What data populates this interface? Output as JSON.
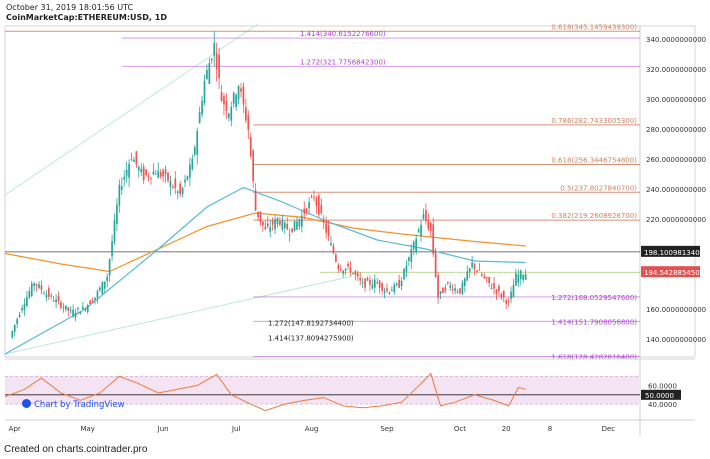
{
  "header": {
    "date": "October 31, 2019 18:01:56 UTC",
    "symbol": "CoinMarketCap:ETHEREUM:USD, 1D"
  },
  "branding": {
    "chart_by": "Chart by TradingView"
  },
  "footer": {
    "credit": "Created on charts.cointrader.pro"
  },
  "colors": {
    "up": "#26a69a",
    "down": "#ef5350",
    "ema_fast": "#56b9d6",
    "ema_slow": "#f0922a",
    "fib_ext": "#b040d8",
    "fib_ret": "#d08060",
    "rsi": "#f07a3a",
    "rsi_band": "#f3e3f3",
    "price_tag": "#e45050",
    "level_tag": "#222222"
  },
  "chart_data": {
    "type": "candlestick",
    "title": "CoinMarketCap:ETHEREUM:USD, 1D",
    "ylim": [
      128,
      346
    ],
    "y_ticks": [
      {
        "value": 340,
        "label": "340.0000000000"
      },
      {
        "value": 320,
        "label": "320.0000000000"
      },
      {
        "value": 300,
        "label": "300.0000000000"
      },
      {
        "value": 280,
        "label": "280.0000000000"
      },
      {
        "value": 260,
        "label": "260.0000000000"
      },
      {
        "value": 240,
        "label": "240.0000000000"
      },
      {
        "value": 220,
        "label": "220.0000000000"
      },
      {
        "value": 160,
        "label": "160.0000000000"
      },
      {
        "value": 140,
        "label": "140.0000000000"
      }
    ],
    "x_ticks": [
      {
        "day": 1,
        "label": "Apr"
      },
      {
        "day": 31,
        "label": "May"
      },
      {
        "day": 62,
        "label": "Jun"
      },
      {
        "day": 92,
        "label": "Jul"
      },
      {
        "day": 123,
        "label": "Aug"
      },
      {
        "day": 154,
        "label": "Sep"
      },
      {
        "day": 184,
        "label": "Oct"
      },
      {
        "day": 203,
        "label": "20"
      },
      {
        "day": 221,
        "label": "8"
      },
      {
        "day": 245,
        "label": "Dec"
      }
    ],
    "x_range_days": [
      -3,
      258
    ],
    "price_tags": [
      {
        "value": 198.10098134,
        "label": "198.1009813400",
        "kind": "level"
      },
      {
        "value": 184.54288545,
        "label": "184.5428854500",
        "kind": "last"
      }
    ],
    "fib_levels": [
      {
        "value": 345.14594393,
        "label": "0.618(345.1459439300)",
        "kind": "ret",
        "from_day": -3
      },
      {
        "value": 340.61522766,
        "label": "1.414(340.6152276600)",
        "kind": "ext",
        "from_day": 45
      },
      {
        "value": 321.77568423,
        "label": "1.272(321.7756842300)",
        "kind": "ext",
        "from_day": 45
      },
      {
        "value": 282.74330053,
        "label": "0.786(282.7433005300)",
        "kind": "ret",
        "from_day": 99
      },
      {
        "value": 256.34467548,
        "label": "0.618(256.3446754800)",
        "kind": "ret",
        "from_day": 99
      },
      {
        "value": 237.80278407,
        "label": "0.5(237.8027840700)",
        "kind": "ret",
        "from_day": 99
      },
      {
        "value": 219.26089267,
        "label": "0.382(219.2608926700)",
        "kind": "ret",
        "from_day": 99
      },
      {
        "value": 168.05295476,
        "label": "1.272(168.0529547600)",
        "kind": "ext",
        "from_day": 99
      },
      {
        "value": 151.79080568,
        "label": "1.414(151.7908056800)",
        "kind": "ext",
        "from_day": 99
      },
      {
        "value": 147.81927344,
        "label": "1.272(147.8192734400)",
        "kind": "plain",
        "from_day": 99
      },
      {
        "value": 137.80942759,
        "label": "1.414(137.8094275900)",
        "kind": "plain",
        "from_day": 99
      },
      {
        "value": 128.42828164,
        "label": "1.618(128.4282816400)",
        "kind": "ext",
        "from_day": 99
      }
    ],
    "trend_lines": [
      {
        "from_day": -3,
        "from_value": 236,
        "to_day": 101,
        "to_value": 350
      },
      {
        "from_day": -3,
        "from_value": 130,
        "to_day": 140,
        "to_value": 182
      }
    ],
    "candles_close": [
      {
        "day": 0,
        "value": 141
      },
      {
        "day": 5,
        "value": 162
      },
      {
        "day": 10,
        "value": 178
      },
      {
        "day": 15,
        "value": 170
      },
      {
        "day": 20,
        "value": 164
      },
      {
        "day": 25,
        "value": 158
      },
      {
        "day": 30,
        "value": 160
      },
      {
        "day": 35,
        "value": 168
      },
      {
        "day": 40,
        "value": 182
      },
      {
        "day": 45,
        "value": 240
      },
      {
        "day": 50,
        "value": 262
      },
      {
        "day": 55,
        "value": 248
      },
      {
        "day": 60,
        "value": 252
      },
      {
        "day": 65,
        "value": 246
      },
      {
        "day": 70,
        "value": 236
      },
      {
        "day": 75,
        "value": 258
      },
      {
        "day": 80,
        "value": 312
      },
      {
        "day": 84,
        "value": 336
      },
      {
        "day": 87,
        "value": 300
      },
      {
        "day": 90,
        "value": 292
      },
      {
        "day": 94,
        "value": 310
      },
      {
        "day": 98,
        "value": 280
      },
      {
        "day": 101,
        "value": 226
      },
      {
        "day": 105,
        "value": 212
      },
      {
        "day": 110,
        "value": 220
      },
      {
        "day": 115,
        "value": 212
      },
      {
        "day": 120,
        "value": 222
      },
      {
        "day": 125,
        "value": 235
      },
      {
        "day": 130,
        "value": 212
      },
      {
        "day": 135,
        "value": 188
      },
      {
        "day": 140,
        "value": 186
      },
      {
        "day": 145,
        "value": 176
      },
      {
        "day": 150,
        "value": 178
      },
      {
        "day": 155,
        "value": 172
      },
      {
        "day": 160,
        "value": 176
      },
      {
        "day": 165,
        "value": 198
      },
      {
        "day": 170,
        "value": 222
      },
      {
        "day": 173,
        "value": 212
      },
      {
        "day": 176,
        "value": 168
      },
      {
        "day": 180,
        "value": 176
      },
      {
        "day": 185,
        "value": 172
      },
      {
        "day": 190,
        "value": 190
      },
      {
        "day": 195,
        "value": 180
      },
      {
        "day": 200,
        "value": 172
      },
      {
        "day": 205,
        "value": 164
      },
      {
        "day": 208,
        "value": 182
      },
      {
        "day": 211,
        "value": 184
      }
    ],
    "ema_fast": [
      {
        "day": -3,
        "value": 130
      },
      {
        "day": 30,
        "value": 160
      },
      {
        "day": 60,
        "value": 200
      },
      {
        "day": 80,
        "value": 228
      },
      {
        "day": 95,
        "value": 241
      },
      {
        "day": 110,
        "value": 232
      },
      {
        "day": 130,
        "value": 218
      },
      {
        "day": 150,
        "value": 206
      },
      {
        "day": 170,
        "value": 200
      },
      {
        "day": 190,
        "value": 192
      },
      {
        "day": 211,
        "value": 191
      }
    ],
    "ema_slow": [
      {
        "day": -3,
        "value": 197
      },
      {
        "day": 20,
        "value": 190
      },
      {
        "day": 40,
        "value": 185
      },
      {
        "day": 60,
        "value": 200
      },
      {
        "day": 80,
        "value": 215
      },
      {
        "day": 100,
        "value": 224
      },
      {
        "day": 120,
        "value": 221
      },
      {
        "day": 140,
        "value": 214
      },
      {
        "day": 160,
        "value": 210
      },
      {
        "day": 190,
        "value": 205
      },
      {
        "day": 211,
        "value": 202
      }
    ],
    "rsi": {
      "ylim": [
        25,
        80
      ],
      "ticks": [
        {
          "value": 60,
          "label": "60.0000"
        },
        {
          "value": 40,
          "label": "40.0000"
        }
      ],
      "tag": {
        "value": 50,
        "label": "50.0000"
      },
      "band": [
        40,
        70
      ],
      "values": [
        {
          "day": -3,
          "value": 48
        },
        {
          "day": 5,
          "value": 56
        },
        {
          "day": 12,
          "value": 68
        },
        {
          "day": 20,
          "value": 52
        },
        {
          "day": 28,
          "value": 44
        },
        {
          "day": 36,
          "value": 52
        },
        {
          "day": 44,
          "value": 70
        },
        {
          "day": 52,
          "value": 62
        },
        {
          "day": 60,
          "value": 52
        },
        {
          "day": 68,
          "value": 56
        },
        {
          "day": 76,
          "value": 60
        },
        {
          "day": 84,
          "value": 72
        },
        {
          "day": 90,
          "value": 50
        },
        {
          "day": 98,
          "value": 40
        },
        {
          "day": 104,
          "value": 33
        },
        {
          "day": 112,
          "value": 40
        },
        {
          "day": 120,
          "value": 44
        },
        {
          "day": 128,
          "value": 47
        },
        {
          "day": 136,
          "value": 38
        },
        {
          "day": 144,
          "value": 36
        },
        {
          "day": 152,
          "value": 38
        },
        {
          "day": 160,
          "value": 42
        },
        {
          "day": 168,
          "value": 62
        },
        {
          "day": 172,
          "value": 73
        },
        {
          "day": 176,
          "value": 38
        },
        {
          "day": 182,
          "value": 42
        },
        {
          "day": 190,
          "value": 50
        },
        {
          "day": 198,
          "value": 44
        },
        {
          "day": 204,
          "value": 38
        },
        {
          "day": 208,
          "value": 58
        },
        {
          "day": 211,
          "value": 56
        }
      ]
    }
  }
}
